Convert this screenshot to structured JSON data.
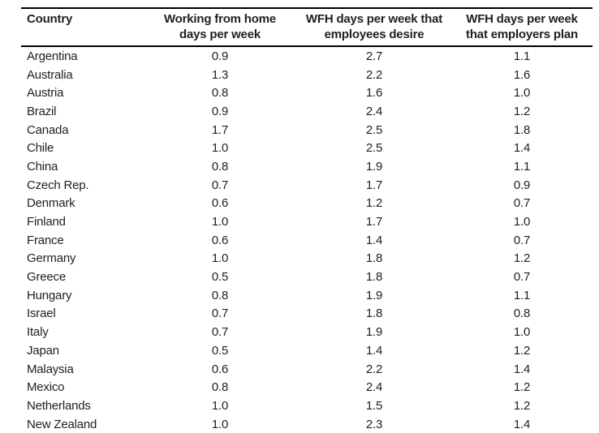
{
  "colors": {
    "background": "#ffffff",
    "text": "#1f1f1f",
    "rule": "#000000"
  },
  "chart_data": {
    "type": "table",
    "columns": [
      {
        "id": "country",
        "line1": "Country",
        "align": "left"
      },
      {
        "id": "wfh_days_per_week",
        "line1": "Working from home",
        "line2": "days per week",
        "align": "center"
      },
      {
        "id": "wfh_days_employees_desire",
        "line1": "WFH days per week that",
        "line2": "employees desire",
        "align": "center"
      },
      {
        "id": "wfh_days_employers_plan",
        "line1": "WFH days per week",
        "line2": "that employers plan",
        "align": "center"
      }
    ],
    "rows": [
      [
        "Argentina",
        "0.9",
        "2.7",
        "1.1"
      ],
      [
        "Australia",
        "1.3",
        "2.2",
        "1.6"
      ],
      [
        "Austria",
        "0.8",
        "1.6",
        "1.0"
      ],
      [
        "Brazil",
        "0.9",
        "2.4",
        "1.2"
      ],
      [
        "Canada",
        "1.7",
        "2.5",
        "1.8"
      ],
      [
        "Chile",
        "1.0",
        "2.5",
        "1.4"
      ],
      [
        "China",
        "0.8",
        "1.9",
        "1.1"
      ],
      [
        "Czech Rep.",
        "0.7",
        "1.7",
        "0.9"
      ],
      [
        "Denmark",
        "0.6",
        "1.2",
        "0.7"
      ],
      [
        "Finland",
        "1.0",
        "1.7",
        "1.0"
      ],
      [
        "France",
        "0.6",
        "1.4",
        "0.7"
      ],
      [
        "Germany",
        "1.0",
        "1.8",
        "1.2"
      ],
      [
        "Greece",
        "0.5",
        "1.8",
        "0.7"
      ],
      [
        "Hungary",
        "0.8",
        "1.9",
        "1.1"
      ],
      [
        "Israel",
        "0.7",
        "1.8",
        "0.8"
      ],
      [
        "Italy",
        "0.7",
        "1.9",
        "1.0"
      ],
      [
        "Japan",
        "0.5",
        "1.4",
        "1.2"
      ],
      [
        "Malaysia",
        "0.6",
        "2.2",
        "1.4"
      ],
      [
        "Mexico",
        "0.8",
        "2.4",
        "1.2"
      ],
      [
        "Netherlands",
        "1.0",
        "1.5",
        "1.2"
      ],
      [
        "New Zealand",
        "1.0",
        "2.3",
        "1.4"
      ]
    ]
  }
}
